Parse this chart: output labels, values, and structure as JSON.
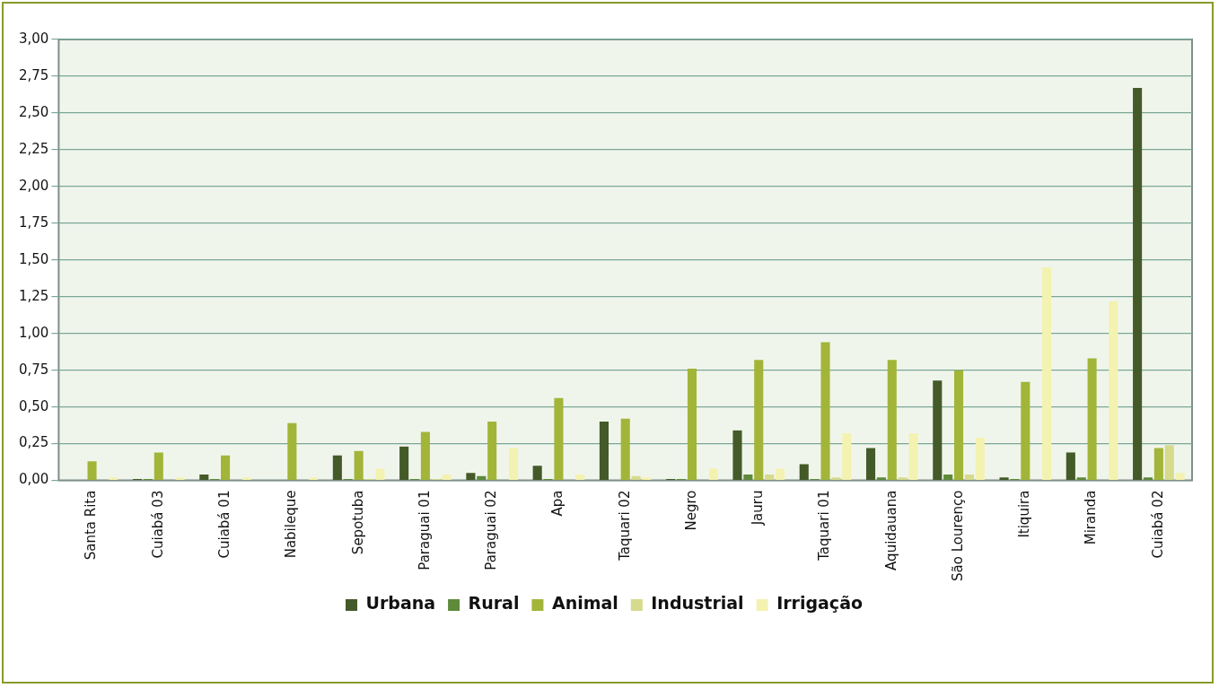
{
  "chart_data": {
    "type": "bar",
    "categories": [
      "Santa Rita",
      "Cuiabá 03",
      "Cuiabá 01",
      "Nabileque",
      "Sepotuba",
      "Paraguai 01",
      "Paraguai 02",
      "Apa",
      "Taquari 02",
      "Negro",
      "Jauru",
      "Taquari 01",
      "Aquidauana",
      "São Lourenço",
      "Itiquira",
      "Miranda",
      "Cuiabá 02"
    ],
    "series": [
      {
        "name": "Urbana",
        "color": "#445a28",
        "values": [
          0,
          0.01,
          0.04,
          0,
          0.17,
          0.23,
          0.05,
          0.1,
          0.4,
          0.01,
          0.34,
          0.11,
          0.22,
          0.68,
          0.02,
          0.19,
          2.67
        ]
      },
      {
        "name": "Rural",
        "color": "#5e8a3a",
        "values": [
          0,
          0.01,
          0.01,
          0,
          0.01,
          0.01,
          0.03,
          0.01,
          0,
          0.01,
          0.04,
          0.01,
          0.02,
          0.04,
          0.01,
          0.02,
          0.02
        ]
      },
      {
        "name": "Animal",
        "color": "#a2b539",
        "values": [
          0.13,
          0.19,
          0.17,
          0.39,
          0.2,
          0.33,
          0.4,
          0.56,
          0.42,
          0.76,
          0.82,
          0.94,
          0.82,
          0.75,
          0.67,
          0.83,
          0.22
        ]
      },
      {
        "name": "Industrial",
        "color": "#d6da8c",
        "values": [
          0,
          0,
          0,
          0,
          0.01,
          0.01,
          0,
          0,
          0.03,
          0,
          0.04,
          0.02,
          0.02,
          0.04,
          0,
          0,
          0.24
        ]
      },
      {
        "name": "Irrigação",
        "color": "#f3f2b0",
        "values": [
          0.02,
          0.02,
          0.02,
          0.02,
          0.08,
          0.04,
          0.22,
          0.04,
          0.02,
          0.08,
          0.08,
          0.32,
          0.32,
          0.29,
          1.45,
          1.22,
          0.05
        ]
      }
    ],
    "ylim": [
      0,
      3
    ],
    "yticks": [
      {
        "value": 0,
        "label": "0,00"
      },
      {
        "value": 0.25,
        "label": "0,25"
      },
      {
        "value": 0.5,
        "label": "0,50"
      },
      {
        "value": 0.75,
        "label": "0,75"
      },
      {
        "value": 1,
        "label": "1,00"
      },
      {
        "value": 1.25,
        "label": "1,25"
      },
      {
        "value": 1.5,
        "label": "1,50"
      },
      {
        "value": 1.75,
        "label": "1,75"
      },
      {
        "value": 2,
        "label": "2,00"
      },
      {
        "value": 2.25,
        "label": "2,25"
      },
      {
        "value": 2.5,
        "label": "2,50"
      },
      {
        "value": 2.75,
        "label": "2,75"
      },
      {
        "value": 3,
        "label": "3,00"
      }
    ],
    "grid": "y",
    "legend": "bottom"
  }
}
